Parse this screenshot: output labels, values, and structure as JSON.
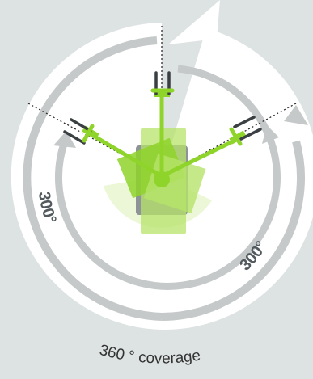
{
  "labels": {
    "left_angle": "300°",
    "right_angle": "300°",
    "bottom_caption": "360 ° coverage"
  },
  "colors": {
    "background": "#dde3e2",
    "disc": "#ffffff",
    "ring": "#c5c9c9",
    "accent": "#8fd42a",
    "accent_light": "#b7e36a",
    "dark": "#3a3f42",
    "label": "#525a5e"
  }
}
